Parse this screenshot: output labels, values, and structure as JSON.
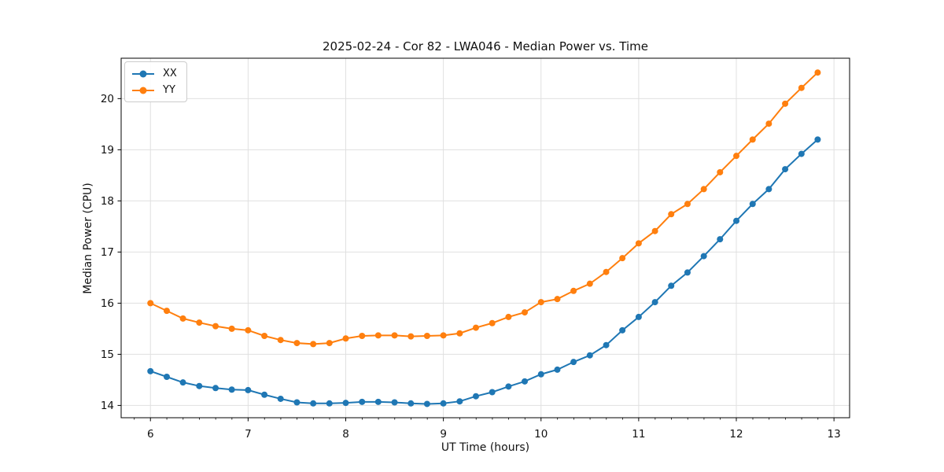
{
  "figure": {
    "title": "2025-02-24 - Cor 82 - LWA046 - Median Power vs. Time",
    "xlabel": "UT Time (hours)",
    "ylabel": "Median Power (CPU)"
  },
  "chart_data": {
    "type": "line",
    "title": "2025-02-24 - Cor 82 - LWA046 - Median Power vs. Time",
    "xlabel": "UT Time (hours)",
    "ylabel": "Median Power (CPU)",
    "grid": true,
    "legend_position": "upper left",
    "marker": "circle",
    "xlim": [
      5.7,
      13.16
    ],
    "ylim": [
      13.76,
      20.79
    ],
    "xticks": [
      6,
      7,
      8,
      9,
      10,
      11,
      12,
      13
    ],
    "yticks": [
      14,
      15,
      16,
      17,
      18,
      19,
      20
    ],
    "x_minor_tick_interval": 0.1667,
    "x": [
      6.0,
      6.167,
      6.333,
      6.5,
      6.667,
      6.833,
      7.0,
      7.167,
      7.333,
      7.5,
      7.667,
      7.833,
      8.0,
      8.167,
      8.333,
      8.5,
      8.667,
      8.833,
      9.0,
      9.167,
      9.333,
      9.5,
      9.667,
      9.833,
      10.0,
      10.167,
      10.333,
      10.5,
      10.667,
      10.833,
      11.0,
      11.167,
      11.333,
      11.5,
      11.667,
      11.833,
      12.0,
      12.167,
      12.333,
      12.5,
      12.667,
      12.833
    ],
    "series": [
      {
        "name": "XX",
        "color": "#1f77b4",
        "values": [
          14.67,
          14.56,
          14.45,
          14.38,
          14.34,
          14.31,
          14.3,
          14.21,
          14.13,
          14.06,
          14.04,
          14.04,
          14.05,
          14.07,
          14.07,
          14.06,
          14.04,
          14.03,
          14.04,
          14.08,
          14.18,
          14.26,
          14.37,
          14.47,
          14.61,
          14.7,
          14.85,
          14.98,
          15.18,
          15.47,
          15.73,
          16.02,
          16.34,
          16.6,
          16.92,
          17.25,
          17.61,
          17.94,
          18.23,
          18.62,
          18.92,
          19.2
        ]
      },
      {
        "name": "YY",
        "color": "#ff7f0e",
        "values": [
          16.0,
          15.85,
          15.7,
          15.62,
          15.55,
          15.5,
          15.47,
          15.36,
          15.28,
          15.22,
          15.2,
          15.22,
          15.31,
          15.36,
          15.37,
          15.37,
          15.35,
          15.36,
          15.37,
          15.41,
          15.52,
          15.61,
          15.73,
          15.82,
          16.02,
          16.08,
          16.24,
          16.38,
          16.61,
          16.88,
          17.17,
          17.41,
          17.74,
          17.94,
          18.23,
          18.56,
          18.88,
          19.2,
          19.51,
          19.9,
          20.21,
          20.51
        ]
      }
    ]
  }
}
